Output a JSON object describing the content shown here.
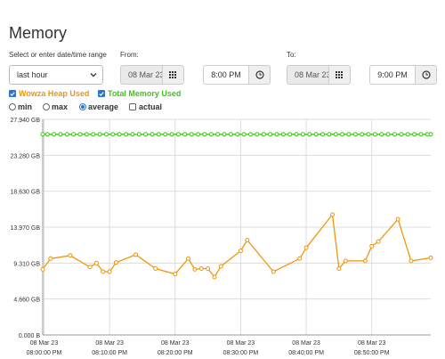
{
  "page": {
    "title": "Memory"
  },
  "controls": {
    "range_label": "Select or enter date/time range",
    "range_value": "last hour",
    "from_label": "From:",
    "from_date": "08 Mar 23",
    "from_time": "8:00 PM",
    "to_label": "To:",
    "to_date": "08 Mar 23",
    "to_time": "9:00 PM"
  },
  "series_toggles": [
    {
      "label": "Wowza Heap Used",
      "checked": true,
      "color": "#f0940a"
    },
    {
      "label": "Total Memory Used",
      "checked": true,
      "color": "#3fc51b"
    }
  ],
  "stat_modes": [
    {
      "label": "min",
      "selected": false
    },
    {
      "label": "max",
      "selected": false
    },
    {
      "label": "average",
      "selected": true
    },
    {
      "label": "actual",
      "selected": false,
      "kind": "checkbox"
    }
  ],
  "chart_data": {
    "type": "line",
    "ylim": [
      0,
      27.94
    ],
    "yticks": [
      "0.000 B",
      "4.660 GB",
      "9.310 GB",
      "13.970 GB",
      "18.630 GB",
      "23.280 GB",
      "27.940 GB"
    ],
    "ytick_values": [
      0,
      4.66,
      9.31,
      13.97,
      18.63,
      23.28,
      27.94
    ],
    "xlim": [
      -0.2,
      59.0
    ],
    "xticks": [
      {
        "date": "08 Mar 23",
        "time": "08:00:00 PM",
        "min": 0
      },
      {
        "date": "08 Mar 23",
        "time": "08:10:00 PM",
        "min": 10
      },
      {
        "date": "08 Mar 23",
        "time": "08:20:00 PM",
        "min": 20
      },
      {
        "date": "08 Mar 23",
        "time": "08:30:00 PM",
        "min": 30
      },
      {
        "date": "08 Mar 23",
        "time": "08:40:00 PM",
        "min": 40
      },
      {
        "date": "08 Mar 23",
        "time": "08:50:00 PM",
        "min": 50
      }
    ],
    "series": [
      {
        "name": "Wowza Heap Used",
        "color": "#f0940a",
        "x": [
          -0.2,
          1,
          4,
          7,
          8,
          9,
          10,
          11,
          14,
          17,
          20,
          22,
          23,
          24,
          25,
          26,
          27,
          30,
          31,
          35,
          39,
          40,
          44,
          45,
          46,
          49,
          50,
          51,
          54,
          56,
          59
        ],
        "y": [
          8.5,
          9.9,
          10.3,
          8.8,
          9.3,
          8.2,
          8.2,
          9.4,
          10.4,
          8.6,
          7.9,
          9.9,
          8.5,
          8.6,
          8.6,
          7.5,
          8.9,
          10.9,
          12.3,
          8.2,
          9.9,
          11.3,
          15.6,
          8.6,
          9.6,
          9.6,
          11.5,
          12.1,
          15.0,
          9.6,
          10.0
        ]
      },
      {
        "name": "Total Memory Used",
        "color": "#3fc51b",
        "x": [
          -0.2,
          0.5,
          1.5,
          2.5,
          3.5,
          4.5,
          5.5,
          6.5,
          7.5,
          8.5,
          9.5,
          10.5,
          11.5,
          12.5,
          13.5,
          14.5,
          15.5,
          16.5,
          17.5,
          18.5,
          19.5,
          20.5,
          21.5,
          22.5,
          23.5,
          24.5,
          25.5,
          26.5,
          27.5,
          28.5,
          29.5,
          30.5,
          31.5,
          32.5,
          33.5,
          34.5,
          35.5,
          36.5,
          37.5,
          38.5,
          39.5,
          40.5,
          41.5,
          42.5,
          43.5,
          44.5,
          45.5,
          46.5,
          47.5,
          48.5,
          49.5,
          50.5,
          51.5,
          52.5,
          53.5,
          54.5,
          55.5,
          56.5,
          57.5,
          58.5,
          59
        ],
        "y": [
          26.0,
          26.0,
          26.0,
          26.0,
          26.0,
          26.0,
          26.0,
          26.0,
          26.0,
          26.0,
          26.0,
          26.0,
          26.0,
          26.0,
          26.0,
          26.0,
          26.0,
          26.0,
          26.0,
          26.0,
          26.0,
          26.0,
          26.0,
          26.0,
          26.0,
          26.0,
          26.0,
          26.0,
          26.0,
          26.0,
          26.0,
          26.0,
          26.0,
          26.0,
          26.0,
          26.0,
          26.0,
          26.0,
          26.0,
          26.0,
          26.0,
          26.0,
          26.0,
          26.0,
          26.0,
          26.0,
          26.0,
          26.0,
          26.0,
          26.0,
          26.0,
          26.0,
          26.0,
          26.0,
          26.0,
          26.0,
          26.0,
          26.0,
          26.0,
          26.0,
          26.0
        ]
      }
    ],
    "grid": true
  }
}
